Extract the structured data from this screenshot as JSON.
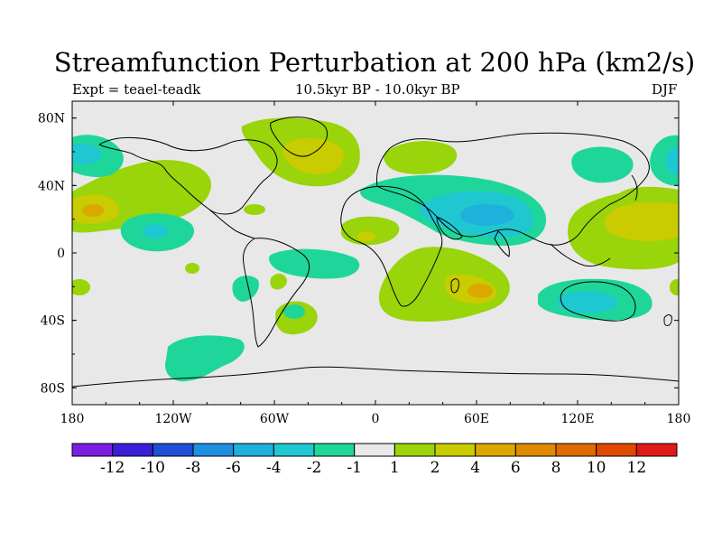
{
  "title": "Streamfunction Perturbation at 200 hPa (km2/s)",
  "left_string": "Expt = teael-teadk",
  "center_string": "10.5kyr BP - 10.0kyr BP",
  "right_string": "DJF",
  "x_axis": {
    "range": [
      -180,
      180
    ],
    "ticks": [
      {
        "v": -180,
        "label": "180"
      },
      {
        "v": -120,
        "label": "120W"
      },
      {
        "v": -60,
        "label": "60W"
      },
      {
        "v": 0,
        "label": "0"
      },
      {
        "v": 60,
        "label": "60E"
      },
      {
        "v": 120,
        "label": "120E"
      },
      {
        "v": 180,
        "label": "180"
      }
    ]
  },
  "y_axis": {
    "range": [
      -90,
      90
    ],
    "ticks": [
      {
        "v": 80,
        "label": "80N"
      },
      {
        "v": 40,
        "label": "40N"
      },
      {
        "v": 0,
        "label": "0"
      },
      {
        "v": -40,
        "label": "40S"
      },
      {
        "v": -80,
        "label": "80S"
      }
    ]
  },
  "colorbar": {
    "colors": [
      "#7a1fe0",
      "#3a1fd8",
      "#1f4fd6",
      "#1f8fe0",
      "#1fb0dc",
      "#1fc8d0",
      "#1fd69a",
      "#e8e8e8",
      "#9ad40a",
      "#c8cc00",
      "#dca800",
      "#e08a00",
      "#e06a00",
      "#e04a00",
      "#e01a1a"
    ],
    "labels": [
      "-12",
      "-10",
      "-8",
      "-6",
      "-4",
      "-2",
      "-1",
      "1",
      "2",
      "4",
      "6",
      "8",
      "10",
      "12"
    ]
  },
  "chart_data": {
    "type": "contour_map",
    "variable": "Streamfunction Perturbation at 200 hPa",
    "units": "km2/s",
    "levels": [
      -12,
      -10,
      -8,
      -6,
      -4,
      -2,
      -1,
      1,
      2,
      4,
      6,
      8,
      10,
      12
    ],
    "features": [
      {
        "region": "North Pacific (approx. 175E-125W, 20-45N)",
        "peak": 4,
        "sign": "positive"
      },
      {
        "region": "Northeast Pacific (approx. 170W-130W, 50-65N)",
        "peak": -2,
        "sign": "negative"
      },
      {
        "region": "North Atlantic / Greenland (approx. 70W-15W, 45-80N)",
        "peak": 4,
        "sign": "positive"
      },
      {
        "region": "Middle East / Arabian Sea (approx. 30-95E, 10-45N)",
        "peak": -2,
        "sign": "negative"
      },
      {
        "region": "Northern Europe (approx. 10-60E, 55-70N)",
        "peak": 2,
        "sign": "positive"
      },
      {
        "region": "Northwest Pacific (approx. 115-180E, 5-40N)",
        "peak": 4,
        "sign": "positive"
      },
      {
        "region": "Southern Indian Ocean (approx. 15-75E, 5-45S)",
        "peak": 4,
        "sign": "positive"
      },
      {
        "region": "Australia (approx. 100-160E, 20-40S)",
        "peak": -2,
        "sign": "negative"
      },
      {
        "region": "South Pacific (approx. 130-70W, 48-75S)",
        "peak": -2,
        "sign": "negative"
      },
      {
        "region": "South Atlantic (approx. 50-20W, 30-50S)",
        "peak": 2,
        "sign": "positive"
      }
    ]
  }
}
